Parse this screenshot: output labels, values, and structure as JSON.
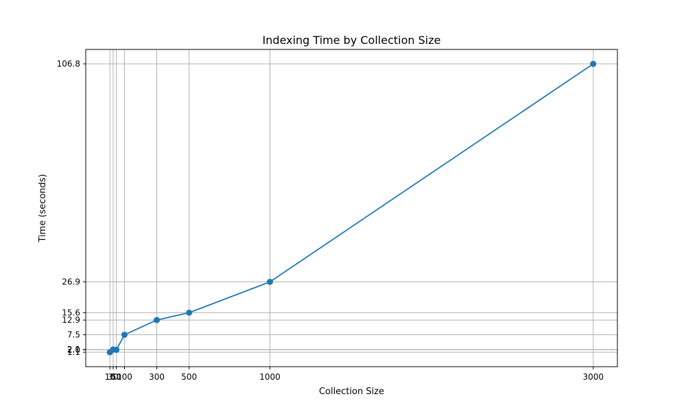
{
  "chart_data": {
    "type": "line",
    "title": "Indexing Time by Collection Size",
    "xlabel": "Collection Size",
    "ylabel": "Time (seconds)",
    "x": [
      10,
      30,
      50,
      100,
      300,
      500,
      1000,
      3000
    ],
    "series": [
      {
        "values": [
          1.1,
          2.1,
          2.0,
          7.5,
          12.9,
          15.6,
          26.9,
          106.8
        ],
        "color": "#1f77b4",
        "marker": "circle"
      }
    ],
    "xticks": [
      10,
      30,
      50,
      100,
      300,
      500,
      1000,
      3000
    ],
    "xtick_labels": [
      "10",
      "30",
      "50",
      "100",
      "300",
      "500",
      "1000",
      "3000"
    ],
    "yticks": [
      1.1,
      2.0,
      2.1,
      7.5,
      12.9,
      15.6,
      26.9,
      106.8
    ],
    "ytick_labels": [
      "1.1",
      "2.0",
      "2.1",
      "7.5",
      "12.9",
      "15.6",
      "26.9",
      "106.8"
    ],
    "xlim": [
      -139.5,
      3149.5
    ],
    "ylim": [
      -4.19,
      112.09
    ],
    "grid": true
  }
}
